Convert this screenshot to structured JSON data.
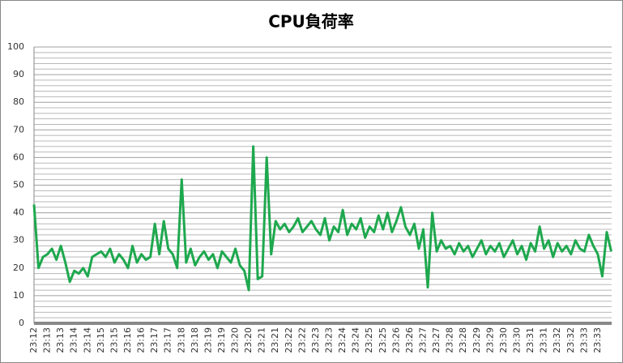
{
  "chart_data": {
    "type": "line",
    "title": "CPU負荷率",
    "categories": [
      "23:12",
      null,
      null,
      "23:13",
      null,
      null,
      "23:13",
      null,
      null,
      "23:14",
      null,
      null,
      "23:14",
      null,
      null,
      "23:15",
      null,
      null,
      "23:15",
      null,
      null,
      "23:16",
      null,
      null,
      "23:16",
      null,
      null,
      "23:17",
      null,
      null,
      "23:17",
      null,
      null,
      "23:18",
      null,
      null,
      "23:18",
      null,
      null,
      "23:19",
      null,
      null,
      "23:19",
      null,
      null,
      "23:20",
      null,
      null,
      "23:20",
      null,
      null,
      "23:21",
      null,
      null,
      "23:21",
      null,
      null,
      "23:22",
      null,
      null,
      "23:22",
      null,
      null,
      "23:23",
      null,
      null,
      "23:23",
      null,
      null,
      "23:24",
      null,
      null,
      "23:24",
      null,
      null,
      "23:25",
      null,
      null,
      "23:25",
      null,
      null,
      "23:26",
      null,
      null,
      "23:26",
      null,
      null,
      "23:27",
      null,
      null,
      "23:27",
      null,
      null,
      "23:28",
      null,
      null,
      "23:28",
      null,
      null,
      "23:29",
      null,
      null,
      "23:29",
      null,
      null,
      "23:30",
      null,
      null,
      "23:30",
      null,
      null,
      "23:31",
      null,
      null,
      "23:31",
      null,
      null,
      "23:32",
      null,
      null,
      "23:32",
      null,
      null,
      "23:33",
      null,
      null,
      "23:33",
      null,
      null,
      null
    ],
    "values": [
      43,
      20,
      24,
      25,
      27,
      23,
      28,
      22,
      15,
      19,
      18,
      20,
      17,
      24,
      25,
      26,
      24,
      27,
      22,
      25,
      23,
      20,
      28,
      22,
      25,
      23,
      24,
      36,
      25,
      37,
      27,
      25,
      20,
      52,
      22,
      27,
      21,
      24,
      26,
      23,
      25,
      20,
      26,
      24,
      22,
      27,
      21,
      19,
      12,
      64,
      16,
      17,
      60,
      25,
      37,
      34,
      36,
      33,
      35,
      38,
      33,
      35,
      37,
      34,
      32,
      38,
      30,
      35,
      33,
      41,
      32,
      36,
      34,
      38,
      31,
      35,
      33,
      39,
      34,
      40,
      33,
      37,
      42,
      35,
      32,
      36,
      27,
      34,
      13,
      40,
      26,
      30,
      27,
      28,
      25,
      29,
      26,
      28,
      24,
      27,
      30,
      25,
      28,
      26,
      29,
      24,
      27,
      30,
      25,
      28,
      23,
      29,
      26,
      35,
      27,
      30,
      24,
      29,
      26,
      28,
      25,
      30,
      27,
      26,
      32,
      28,
      25,
      17,
      33,
      26
    ],
    "color": "#1ea84e",
    "ylim": [
      0,
      100
    ],
    "yticks": [
      0,
      10,
      20,
      30,
      40,
      50,
      60,
      70,
      80,
      90,
      100
    ],
    "yminorticks": [
      2,
      4,
      6,
      8,
      12,
      14,
      16,
      18,
      22,
      24,
      26,
      28,
      32,
      34,
      36,
      38,
      42,
      44,
      46,
      48,
      52,
      54,
      56,
      58,
      62,
      64,
      66,
      68,
      72,
      74,
      76,
      78,
      82,
      84,
      86,
      88,
      92,
      94,
      96,
      98
    ],
    "grid": true
  }
}
